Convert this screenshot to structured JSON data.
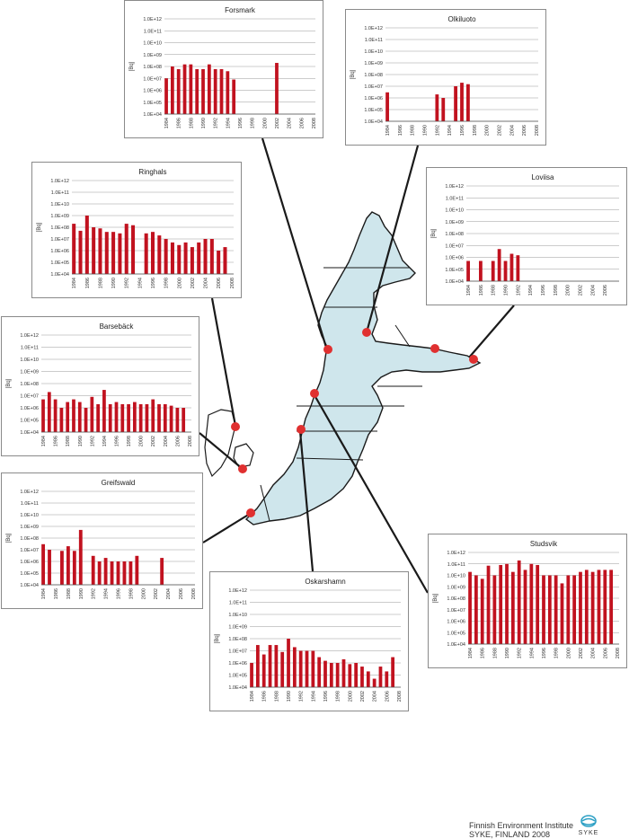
{
  "colors": {
    "sea": "#cfe6ec",
    "land_outline": "#1a1a1a",
    "bar": "#c1121f",
    "site": "#e03030",
    "grid": "#9a9a9a"
  },
  "y_tick_labels": [
    "1.0E+04",
    "1.0E+05",
    "1.0E+06",
    "1.0E+07",
    "1.0E+08",
    "1.0E+09",
    "1.0E+10",
    "1.0E+11",
    "1.0E+12"
  ],
  "footer": {
    "line1": "Finnish Environment Institute",
    "line2": "SYKE, FINLAND 2008",
    "logo_text": "SYKE"
  },
  "chart_data": [
    {
      "id": "forsmark",
      "type": "bar",
      "title": "Forsmark",
      "ylabel": "[Bq]",
      "yscale": "log",
      "ylim": [
        10000,
        1000000000000
      ],
      "xticks": [
        "1984",
        "1986",
        "1988",
        "1990",
        "1992",
        "1994",
        "1996",
        "1998",
        "2000",
        "2002",
        "2004",
        "2006",
        "2008"
      ],
      "x": [
        1984,
        1985,
        1986,
        1987,
        1988,
        1989,
        1990,
        1991,
        1992,
        1993,
        1994,
        1995,
        1996,
        1997,
        1998,
        1999,
        2000,
        2001,
        2002,
        2003,
        2004,
        2005,
        2006,
        2007
      ],
      "values": [
        10000000,
        100000000,
        60000000,
        150000000,
        150000000,
        60000000,
        60000000,
        150000000,
        60000000,
        60000000,
        40000000,
        8000000,
        null,
        null,
        null,
        null,
        null,
        null,
        200000000,
        null,
        null,
        null,
        null,
        null
      ]
    },
    {
      "id": "olkiluoto",
      "type": "bar",
      "title": "Olkiluoto",
      "ylabel": "[Bq]",
      "yscale": "log",
      "ylim": [
        10000,
        1000000000000
      ],
      "xticks": [
        "1984",
        "1986",
        "1988",
        "1990",
        "1992",
        "1994",
        "1996",
        "1998",
        "2000",
        "2002",
        "2004",
        "2006",
        "2008"
      ],
      "x": [
        1984,
        1985,
        1986,
        1987,
        1988,
        1989,
        1990,
        1991,
        1992,
        1993,
        1994,
        1995,
        1996,
        1997,
        1998,
        1999,
        2000,
        2001,
        2002,
        2003,
        2004,
        2005,
        2006,
        2007
      ],
      "values": [
        3000000,
        null,
        null,
        null,
        null,
        null,
        null,
        null,
        2000000,
        1000000,
        null,
        10000000,
        20000000,
        15000000,
        null,
        null,
        null,
        null,
        null,
        null,
        null,
        null,
        null,
        null
      ]
    },
    {
      "id": "ringhals",
      "type": "bar",
      "title": "Ringhals",
      "ylabel": "[Bq]",
      "yscale": "log",
      "ylim": [
        10000,
        1000000000000
      ],
      "xticks": [
        "1984",
        "1986",
        "1988",
        "1990",
        "1992",
        "1994",
        "1996",
        "1998",
        "2000",
        "2002",
        "2004",
        "2006",
        "2008"
      ],
      "x": [
        1984,
        1985,
        1986,
        1987,
        1988,
        1989,
        1990,
        1991,
        1992,
        1993,
        1994,
        1995,
        1996,
        1997,
        1998,
        1999,
        2000,
        2001,
        2002,
        2003,
        2004,
        2005,
        2006,
        2007
      ],
      "values": [
        200000000,
        50000000,
        1000000000,
        100000000,
        80000000,
        40000000,
        40000000,
        30000000,
        200000000,
        150000000,
        null,
        30000000,
        40000000,
        20000000,
        10000000,
        5000000,
        3000000,
        5000000,
        2000000,
        5000000,
        10000000,
        10000000,
        1000000,
        2000000
      ]
    },
    {
      "id": "barseback",
      "type": "bar",
      "title": "Barsebäck",
      "ylabel": "[Bq]",
      "yscale": "log",
      "ylim": [
        10000,
        1000000000000
      ],
      "xticks": [
        "1984",
        "1986",
        "1988",
        "1990",
        "1992",
        "1994",
        "1996",
        "1998",
        "2000",
        "2002",
        "2004",
        "2006",
        "2008"
      ],
      "x": [
        1984,
        1985,
        1986,
        1987,
        1988,
        1989,
        1990,
        1991,
        1992,
        1993,
        1994,
        1995,
        1996,
        1997,
        1998,
        1999,
        2000,
        2001,
        2002,
        2003,
        2004,
        2005,
        2006,
        2007
      ],
      "values": [
        5000000,
        20000000,
        5000000,
        1000000,
        3000000,
        5000000,
        3000000,
        1000000,
        8000000,
        2000000,
        30000000,
        2000000,
        3000000,
        2000000,
        2000000,
        3000000,
        2000000,
        2000000,
        5000000,
        2000000,
        2000000,
        1500000,
        1000000,
        1000000
      ]
    },
    {
      "id": "loviisa",
      "type": "bar",
      "title": "Loviisa",
      "ylabel": "[Bq]",
      "yscale": "log",
      "ylim": [
        10000,
        1000000000000
      ],
      "xticks": [
        "1984",
        "1986",
        "1988",
        "1990",
        "1992",
        "1994",
        "1996",
        "1998",
        "2000",
        "2002",
        "2004",
        "2006"
      ],
      "x": [
        1984,
        1985,
        1986,
        1987,
        1988,
        1989,
        1990,
        1991,
        1992,
        1993,
        1994,
        1995,
        1996,
        1997,
        1998,
        1999,
        2000,
        2001,
        2002,
        2003,
        2004,
        2005,
        2006,
        2007
      ],
      "values": [
        500000,
        null,
        500000,
        null,
        500000,
        5000000,
        500000,
        2000000,
        1500000,
        null,
        null,
        null,
        null,
        null,
        null,
        null,
        null,
        null,
        null,
        null,
        null,
        null,
        null,
        null
      ]
    },
    {
      "id": "greifswald",
      "type": "bar",
      "title": "Greifswald",
      "ylabel": "[Bq]",
      "yscale": "log",
      "ylim": [
        10000,
        1000000000000
      ],
      "xticks": [
        "1984",
        "1986",
        "1988",
        "1990",
        "1992",
        "1994",
        "1996",
        "1998",
        "2000",
        "2002",
        "2004",
        "2006",
        "2008"
      ],
      "x": [
        1984,
        1985,
        1986,
        1987,
        1988,
        1989,
        1990,
        1991,
        1992,
        1993,
        1994,
        1995,
        1996,
        1997,
        1998,
        1999,
        2000,
        2001,
        2002,
        2003,
        2004,
        2005,
        2006,
        2007
      ],
      "values": [
        30000000,
        10000000,
        null,
        8000000,
        20000000,
        8000000,
        500000000,
        null,
        3000000,
        1000000,
        2000000,
        1000000,
        1000000,
        1000000,
        1000000,
        3000000,
        null,
        null,
        null,
        2000000,
        null,
        null,
        null,
        null
      ]
    },
    {
      "id": "oskarshamn",
      "type": "bar",
      "title": "Oskarshamn",
      "ylabel": "[Bq]",
      "yscale": "log",
      "ylim": [
        10000,
        1000000000000
      ],
      "xticks": [
        "1984",
        "1986",
        "1988",
        "1990",
        "1992",
        "1994",
        "1996",
        "1998",
        "2000",
        "2002",
        "2004",
        "2006",
        "2008"
      ],
      "x": [
        1984,
        1985,
        1986,
        1987,
        1988,
        1989,
        1990,
        1991,
        1992,
        1993,
        1994,
        1995,
        1996,
        1997,
        1998,
        1999,
        2000,
        2001,
        2002,
        2003,
        2004,
        2005,
        2006,
        2007
      ],
      "values": [
        1000000,
        30000000,
        5000000,
        30000000,
        30000000,
        8000000,
        100000000,
        20000000,
        10000000,
        10000000,
        10000000,
        3000000,
        1500000,
        1000000,
        1000000,
        2000000,
        800000,
        1000000,
        500000,
        200000,
        50000,
        500000,
        200000,
        3000000
      ]
    },
    {
      "id": "studsvik",
      "type": "bar",
      "title": "Studsvik",
      "ylabel": "[Bq]",
      "yscale": "log",
      "ylim": [
        10000,
        1000000000000
      ],
      "xticks": [
        "1984",
        "1986",
        "1988",
        "1990",
        "1992",
        "1994",
        "1996",
        "1998",
        "2000",
        "2002",
        "2004",
        "2006",
        "2008"
      ],
      "x": [
        1984,
        1985,
        1986,
        1987,
        1988,
        1989,
        1990,
        1991,
        1992,
        1993,
        1994,
        1995,
        1996,
        1997,
        1998,
        1999,
        2000,
        2001,
        2002,
        2003,
        2004,
        2005,
        2006,
        2007
      ],
      "values": [
        20000000000,
        10000000000,
        5000000000,
        70000000000,
        10000000000,
        80000000000,
        100000000000,
        20000000000,
        200000000000,
        30000000000,
        100000000000,
        80000000000,
        10000000000,
        10000000000,
        10000000000,
        2000000000,
        10000000000,
        10000000000,
        20000000000,
        30000000000,
        20000000000,
        30000000000,
        30000000000,
        30000000000
      ]
    }
  ]
}
